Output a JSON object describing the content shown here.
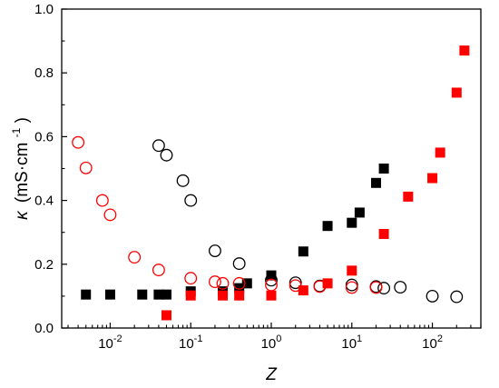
{
  "chart_data": {
    "type": "scatter",
    "xscale": "log",
    "xlim": [
      0.0025,
      400
    ],
    "ylim": [
      0,
      1.0
    ],
    "grid": false,
    "legend": "none",
    "xlabel": "Z",
    "ylabel": {
      "symbol": "κ",
      "unit_prefix": "(mS·cm",
      "unit_sup": "-1",
      "unit_suffix": ")"
    },
    "yticks": [
      0.0,
      0.2,
      0.4,
      0.6,
      0.8,
      1.0
    ],
    "ytick_labels": [
      "0.0",
      "0.2",
      "0.4",
      "0.6",
      "0.8",
      "1.0"
    ],
    "xticks": [
      {
        "value": 0.01,
        "base": "10",
        "exp": "-2"
      },
      {
        "value": 0.1,
        "base": "10",
        "exp": "-1"
      },
      {
        "value": 1,
        "base": "10",
        "exp": "0"
      },
      {
        "value": 10,
        "base": "10",
        "exp": "1"
      },
      {
        "value": 100,
        "base": "10",
        "exp": "2"
      }
    ],
    "series": [
      {
        "marker": "square-filled",
        "color": "#000000",
        "points": [
          [
            0.005,
            0.105
          ],
          [
            0.01,
            0.105
          ],
          [
            0.025,
            0.105
          ],
          [
            0.04,
            0.105
          ],
          [
            0.05,
            0.105
          ],
          [
            0.1,
            0.115
          ],
          [
            0.25,
            0.115
          ],
          [
            0.4,
            0.125
          ],
          [
            0.5,
            0.14
          ],
          [
            1.0,
            0.165
          ],
          [
            2.5,
            0.24
          ],
          [
            5.0,
            0.32
          ],
          [
            10,
            0.33
          ],
          [
            12.5,
            0.362
          ],
          [
            20,
            0.455
          ],
          [
            25,
            0.5
          ]
        ]
      },
      {
        "marker": "circle-open",
        "color": "#000000",
        "points": [
          [
            0.04,
            0.572
          ],
          [
            0.05,
            0.542
          ],
          [
            0.08,
            0.462
          ],
          [
            0.1,
            0.4
          ],
          [
            0.2,
            0.242
          ],
          [
            0.4,
            0.202
          ],
          [
            1.0,
            0.15
          ],
          [
            2.0,
            0.142
          ],
          [
            4.0,
            0.132
          ],
          [
            10,
            0.135
          ],
          [
            20,
            0.13
          ],
          [
            25,
            0.125
          ],
          [
            40,
            0.128
          ],
          [
            100,
            0.1
          ],
          [
            200,
            0.098
          ]
        ]
      },
      {
        "marker": "square-filled",
        "color": "#ff0000",
        "points": [
          [
            0.05,
            0.04
          ],
          [
            0.1,
            0.102
          ],
          [
            0.25,
            0.102
          ],
          [
            0.4,
            0.102
          ],
          [
            1.0,
            0.102
          ],
          [
            2.5,
            0.118
          ],
          [
            5.0,
            0.14
          ],
          [
            10,
            0.18
          ],
          [
            25,
            0.295
          ],
          [
            50,
            0.412
          ],
          [
            100,
            0.47
          ],
          [
            125,
            0.55
          ],
          [
            200,
            0.738
          ],
          [
            250,
            0.87
          ]
        ]
      },
      {
        "marker": "circle-open",
        "color": "#ff0000",
        "points": [
          [
            0.004,
            0.582
          ],
          [
            0.005,
            0.502
          ],
          [
            0.008,
            0.4
          ],
          [
            0.01,
            0.355
          ],
          [
            0.02,
            0.222
          ],
          [
            0.04,
            0.182
          ],
          [
            0.1,
            0.156
          ],
          [
            0.2,
            0.145
          ],
          [
            0.25,
            0.14
          ],
          [
            0.4,
            0.14
          ],
          [
            1.0,
            0.135
          ],
          [
            2.0,
            0.133
          ],
          [
            4.0,
            0.13
          ],
          [
            10,
            0.127
          ],
          [
            20,
            0.127
          ]
        ]
      }
    ]
  }
}
